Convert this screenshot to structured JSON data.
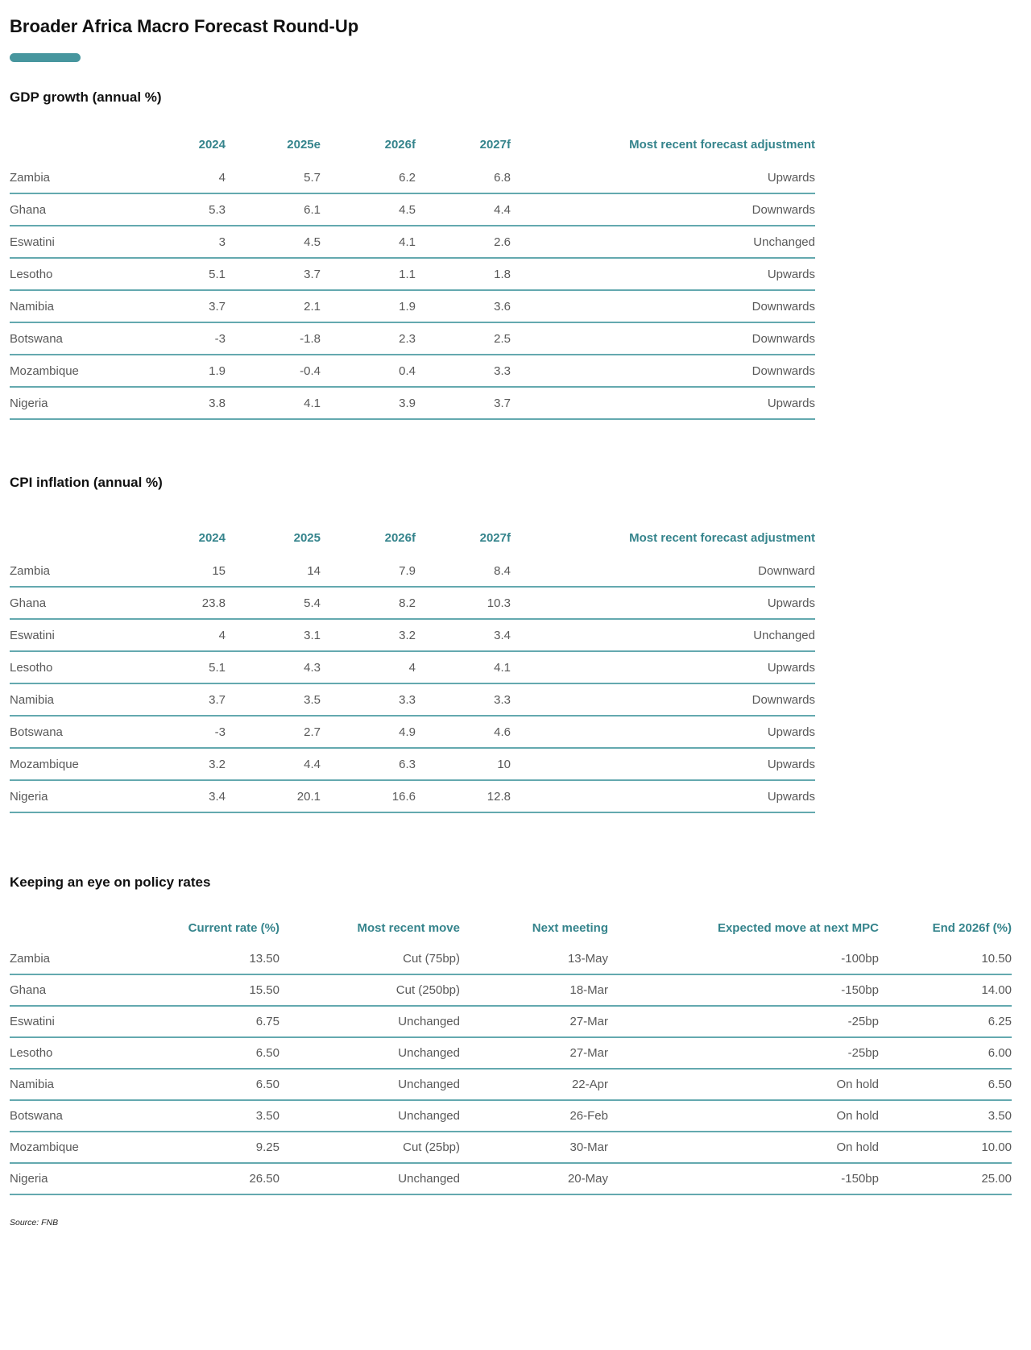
{
  "title": "Broader Africa Macro Forecast Round-Up",
  "source": "Source: FNB",
  "colors": {
    "accent_teal": "#47969e",
    "header_text_teal": "#35848c",
    "row_line_teal": "#64a9af",
    "body_text_gray": "#595959"
  },
  "tables": [
    {
      "heading": "GDP growth (annual %)",
      "columns": [
        "",
        "2024",
        "2025e",
        "2026f",
        "2027f",
        "Most recent forecast adjustment"
      ],
      "rows": [
        [
          "Zambia",
          "4",
          "5.7",
          "6.2",
          "6.8",
          "Upwards"
        ],
        [
          "Ghana",
          "5.3",
          "6.1",
          "4.5",
          "4.4",
          "Downwards"
        ],
        [
          "Eswatini",
          "3",
          "4.5",
          "4.1",
          "2.6",
          "Unchanged"
        ],
        [
          "Lesotho",
          "5.1",
          "3.7",
          "1.1",
          "1.8",
          "Upwards"
        ],
        [
          "Namibia",
          "3.7",
          "2.1",
          "1.9",
          "3.6",
          "Downwards"
        ],
        [
          "Botswana",
          "-3",
          "-1.8",
          "2.3",
          "2.5",
          "Downwards"
        ],
        [
          "Mozambique",
          "1.9",
          "-0.4",
          "0.4",
          "3.3",
          "Downwards"
        ],
        [
          "Nigeria",
          "3.8",
          "4.1",
          "3.9",
          "3.7",
          "Upwards"
        ]
      ]
    },
    {
      "heading": "CPI inflation (annual %)",
      "columns": [
        "",
        "2024",
        "2025",
        "2026f",
        "2027f",
        "Most recent forecast adjustment"
      ],
      "rows": [
        [
          "Zambia",
          "15",
          "14",
          "7.9",
          "8.4",
          "Downward"
        ],
        [
          "Ghana",
          "23.8",
          "5.4",
          "8.2",
          "10.3",
          "Upwards"
        ],
        [
          "Eswatini",
          "4",
          "3.1",
          "3.2",
          "3.4",
          "Unchanged"
        ],
        [
          "Lesotho",
          "5.1",
          "4.3",
          "4",
          "4.1",
          "Upwards"
        ],
        [
          "Namibia",
          "3.7",
          "3.5",
          "3.3",
          "3.3",
          "Downwards"
        ],
        [
          "Botswana",
          "-3",
          "2.7",
          "4.9",
          "4.6",
          "Upwards"
        ],
        [
          "Mozambique",
          "3.2",
          "4.4",
          "6.3",
          "10",
          "Upwards"
        ],
        [
          "Nigeria",
          "3.4",
          "20.1",
          "16.6",
          "12.8",
          "Upwards"
        ]
      ]
    },
    {
      "heading": "Keeping an eye on policy rates",
      "columns": [
        "",
        "Current rate (%)",
        "Most recent move",
        "Next meeting",
        "Expected move at next MPC",
        "End 2026f (%)"
      ],
      "rows": [
        [
          "Zambia",
          "13.50",
          "Cut (75bp)",
          "13-May",
          "-100bp",
          "10.50"
        ],
        [
          "Ghana",
          "15.50",
          "Cut (250bp)",
          "18-Mar",
          "-150bp",
          "14.00"
        ],
        [
          "Eswatini",
          "6.75",
          "Unchanged",
          "27-Mar",
          "-25bp",
          "6.25"
        ],
        [
          "Lesotho",
          "6.50",
          "Unchanged",
          "27-Mar",
          "-25bp",
          "6.00"
        ],
        [
          "Namibia",
          "6.50",
          "Unchanged",
          "22-Apr",
          "On hold",
          "6.50"
        ],
        [
          "Botswana",
          "3.50",
          "Unchanged",
          "26-Feb",
          "On hold",
          "3.50"
        ],
        [
          "Mozambique",
          "9.25",
          "Cut (25bp)",
          "30-Mar",
          "On hold",
          "10.00"
        ],
        [
          "Nigeria",
          "26.50",
          "Unchanged",
          "20-May",
          "-150bp",
          "25.00"
        ]
      ]
    }
  ]
}
